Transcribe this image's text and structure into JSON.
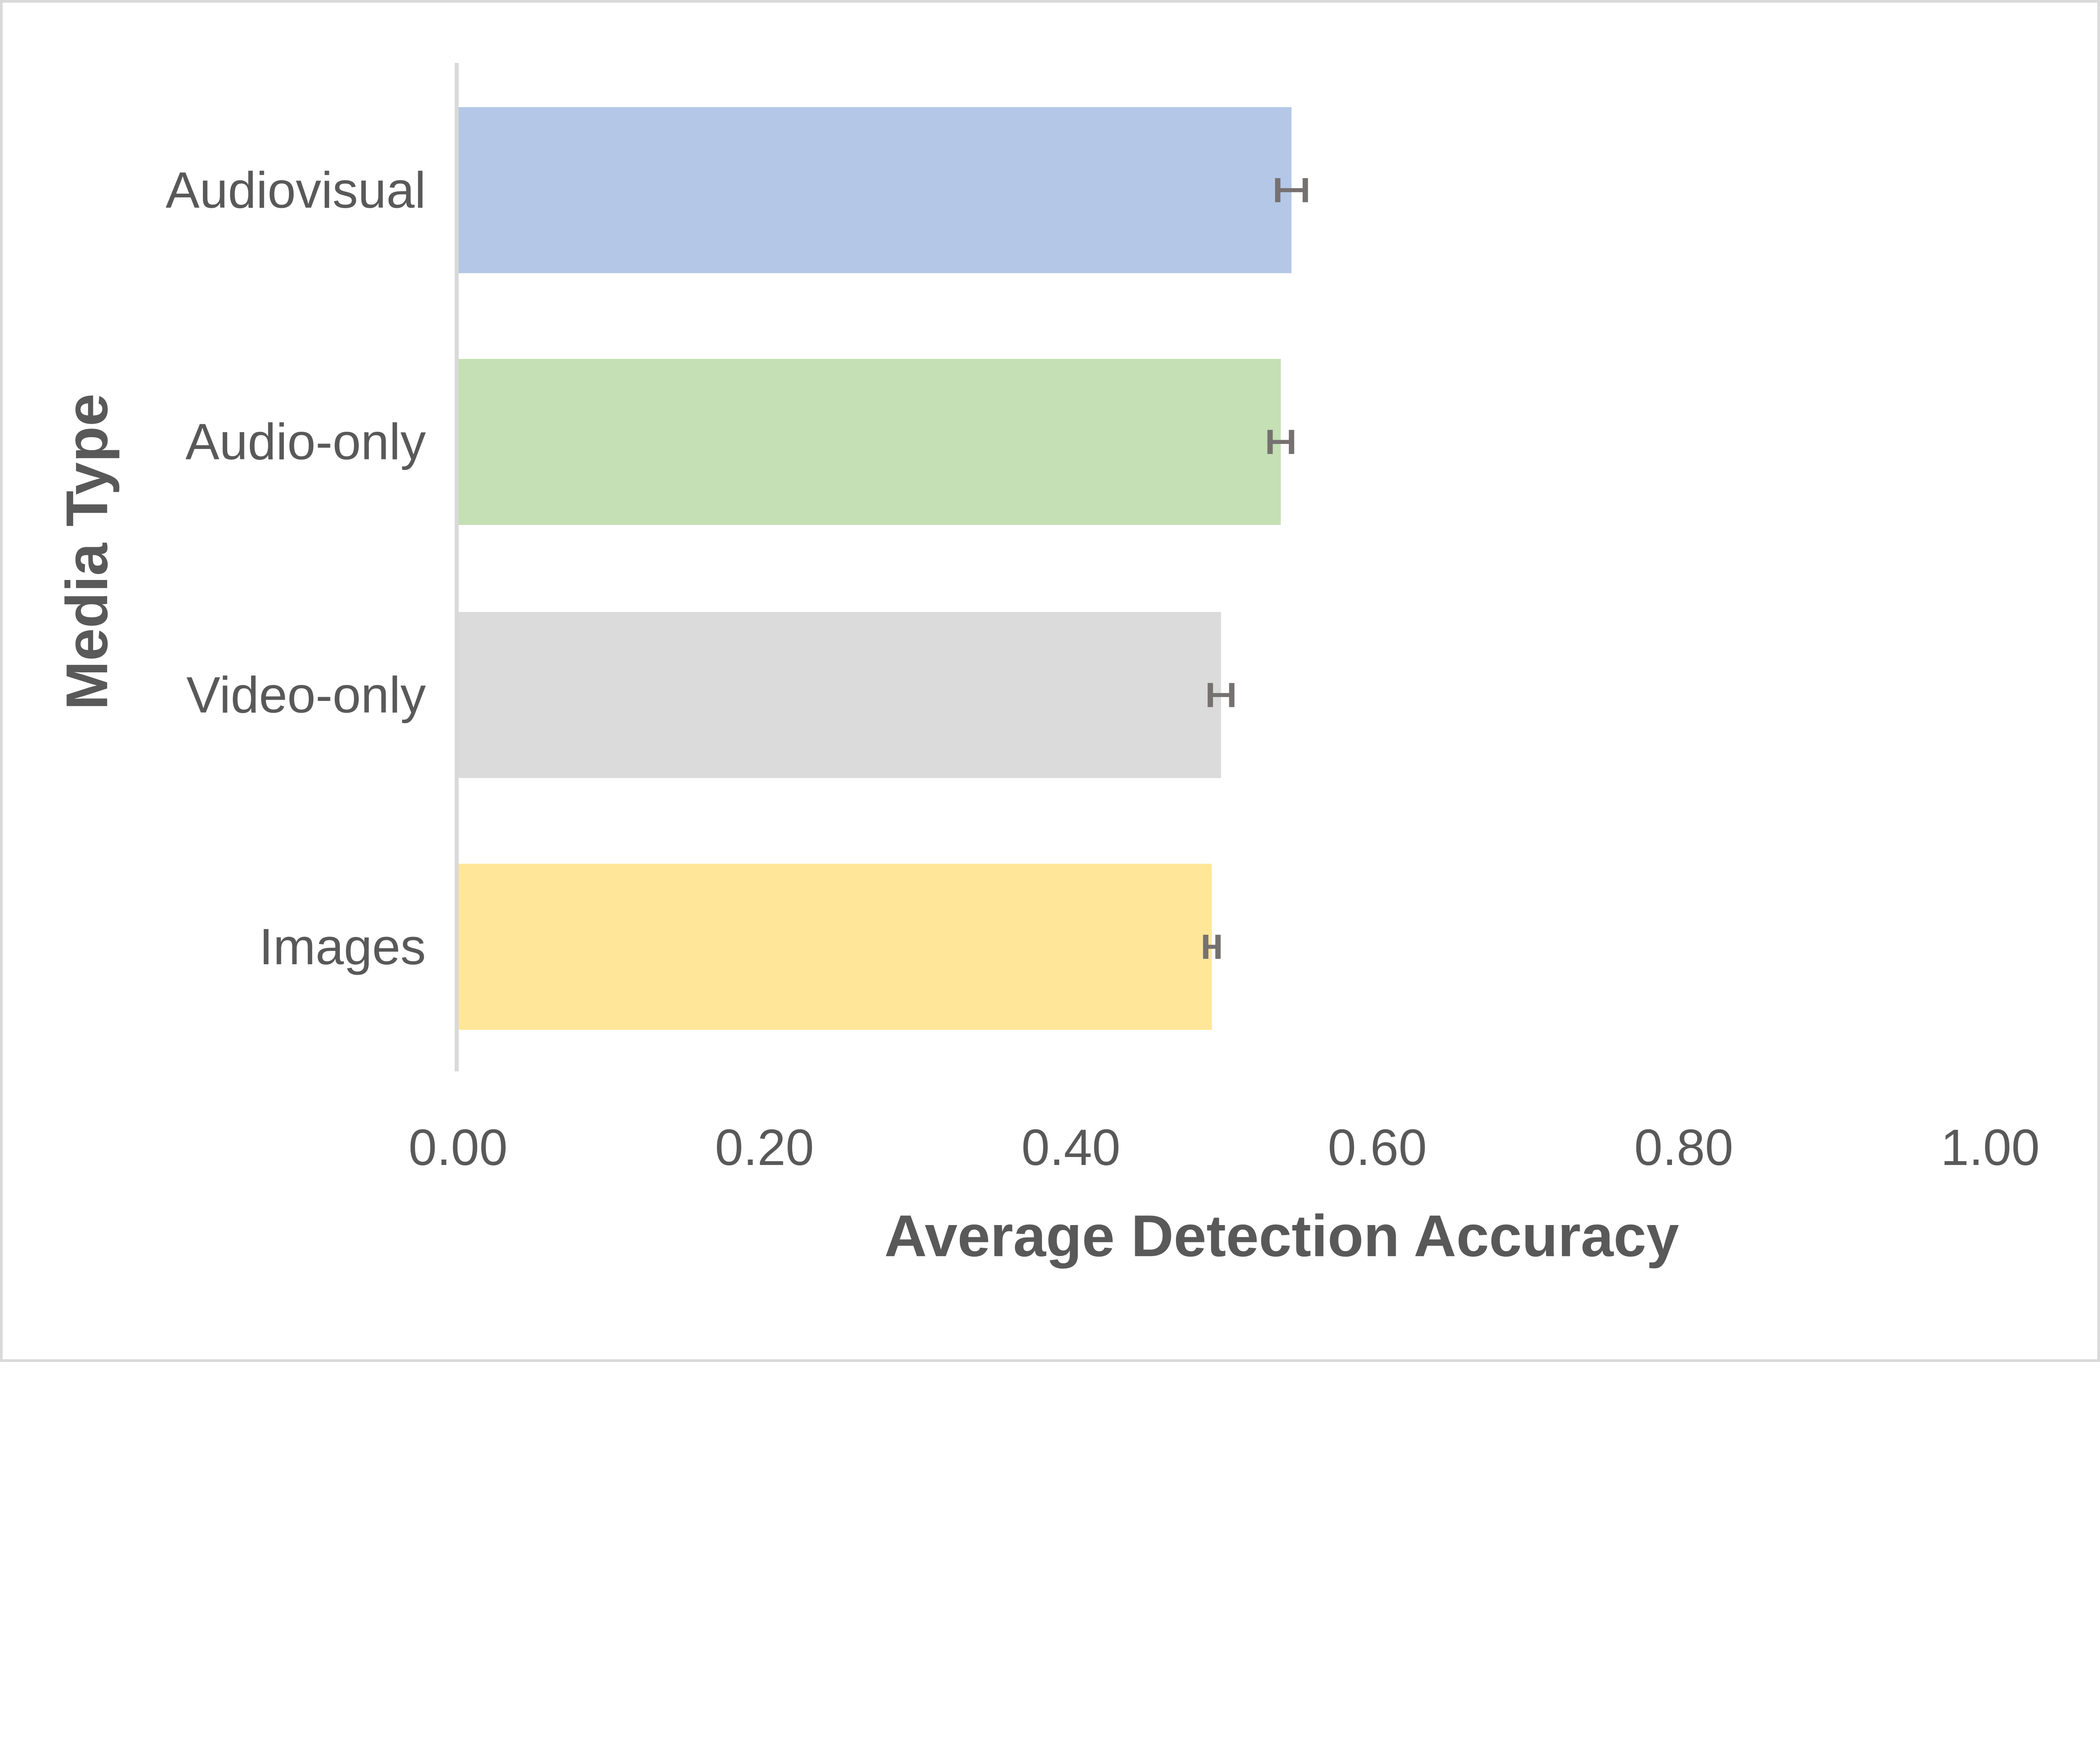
{
  "chart_data": {
    "type": "bar",
    "orientation": "horizontal",
    "title": "",
    "xlabel": "Average Detection Accuracy",
    "ylabel": "Media Type",
    "xlim": [
      0,
      1
    ],
    "xticks": [
      "0.00",
      "0.20",
      "0.40",
      "0.60",
      "0.80",
      "1.00"
    ],
    "xtick_values": [
      0,
      0.2,
      0.4,
      0.6,
      0.8,
      1.0
    ],
    "categories": [
      "Audiovisual",
      "Audio-only",
      "Video-only",
      "Images"
    ],
    "values": [
      0.544,
      0.537,
      0.498,
      0.492
    ],
    "error": [
      0.009,
      0.007,
      0.007,
      0.004
    ],
    "colors": [
      "#b4c7e7",
      "#c5e0b4",
      "#dbdbdb",
      "#ffe699"
    ],
    "error_color": "#767171",
    "grid": false,
    "legend": "none"
  }
}
